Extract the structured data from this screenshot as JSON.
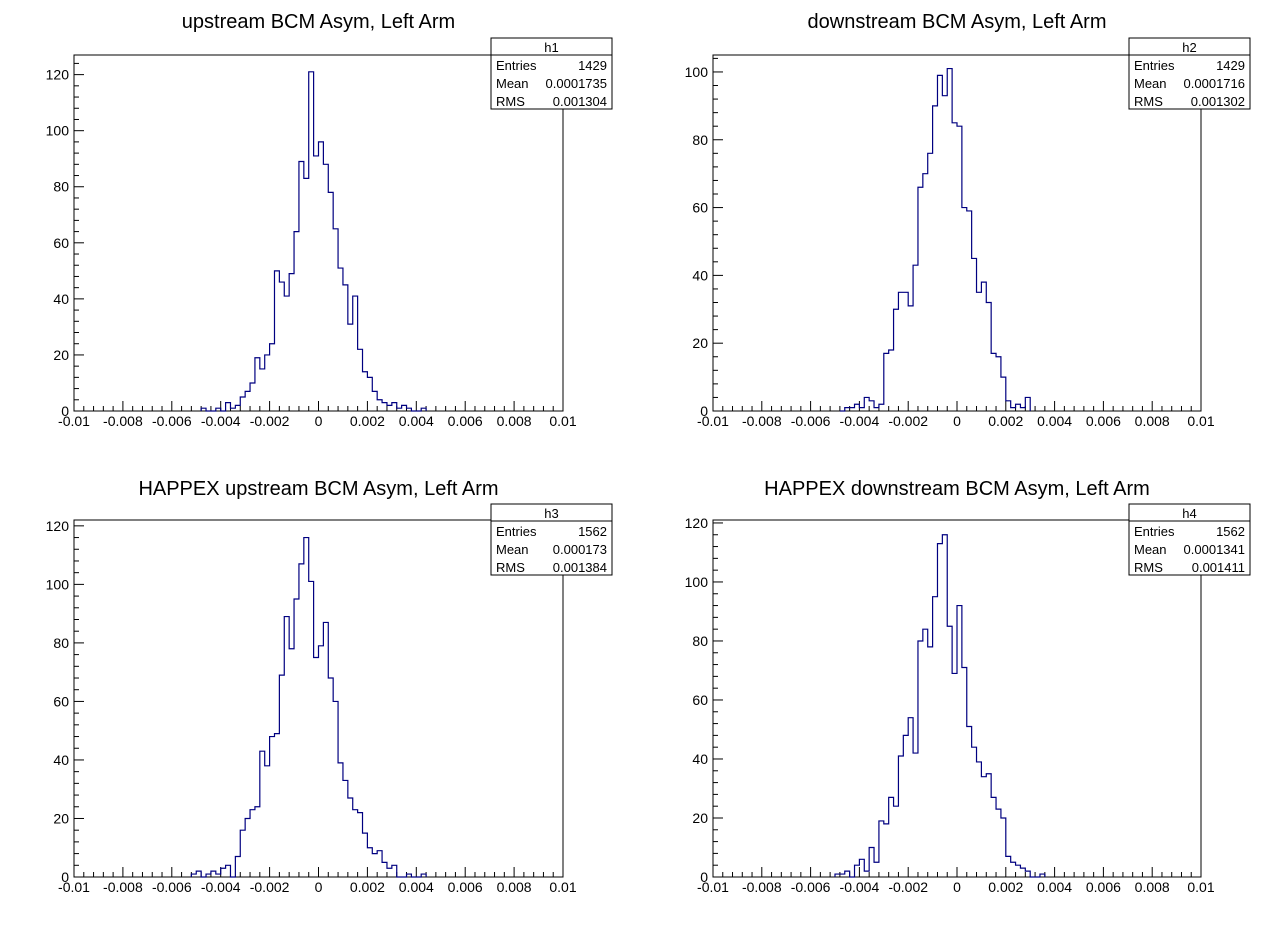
{
  "chart_data": [
    {
      "type": "bar",
      "title": "upstream BCM Asym, Left Arm",
      "xlim": [
        -0.01,
        0.01
      ],
      "ylim": [
        0,
        127
      ],
      "x_ticks": [
        "-0.01",
        "-0.008",
        "-0.006",
        "-0.004",
        "-0.002",
        "0",
        "0.002",
        "0.004",
        "0.006",
        "0.008",
        "0.01"
      ],
      "y_ticks": [
        "0",
        "20",
        "40",
        "60",
        "80",
        "100",
        "120"
      ],
      "stats": {
        "name": "h1",
        "rows": [
          [
            "Entries",
            "1429"
          ],
          [
            "Mean",
            "0.0001735"
          ],
          [
            "RMS",
            "0.001304"
          ]
        ]
      },
      "bin_width": 0.0002,
      "x_start": -0.0048,
      "values": [
        1,
        0,
        0,
        1,
        0,
        3,
        1,
        2,
        5,
        7,
        10,
        19,
        15,
        20,
        24,
        50,
        46,
        41,
        49,
        64,
        89,
        83,
        121,
        91,
        96,
        88,
        78,
        65,
        51,
        45,
        31,
        41,
        22,
        14,
        12,
        7,
        4,
        3,
        2,
        3,
        1,
        2,
        1,
        0,
        0,
        1
      ]
    },
    {
      "type": "bar",
      "title": "downstream BCM Asym, Left Arm",
      "xlim": [
        -0.01,
        0.01
      ],
      "ylim": [
        0,
        105
      ],
      "x_ticks": [
        "-0.01",
        "-0.008",
        "-0.006",
        "-0.004",
        "-0.002",
        "0",
        "0.002",
        "0.004",
        "0.006",
        "0.008",
        "0.01"
      ],
      "y_ticks": [
        "0",
        "20",
        "40",
        "60",
        "80",
        "100"
      ],
      "stats": {
        "name": "h2",
        "rows": [
          [
            "Entries",
            "1429"
          ],
          [
            "Mean",
            "0.0001716"
          ],
          [
            "RMS",
            "0.001302"
          ]
        ]
      },
      "bin_width": 0.0002,
      "x_start": -0.0048,
      "values": [
        0,
        1,
        1,
        2,
        1,
        4,
        3,
        1,
        2,
        17,
        18,
        30,
        35,
        35,
        31,
        43,
        66,
        70,
        76,
        90,
        99,
        93,
        101,
        85,
        84,
        60,
        59,
        45,
        35,
        38,
        32,
        17,
        16,
        10,
        3,
        1,
        2,
        1,
        4
      ]
    },
    {
      "type": "bar",
      "title": "HAPPEX upstream BCM Asym, Left Arm",
      "xlim": [
        -0.01,
        0.01
      ],
      "ylim": [
        0,
        122
      ],
      "x_ticks": [
        "-0.01",
        "-0.008",
        "-0.006",
        "-0.004",
        "-0.002",
        "0",
        "0.002",
        "0.004",
        "0.006",
        "0.008",
        "0.01"
      ],
      "y_ticks": [
        "0",
        "20",
        "40",
        "60",
        "80",
        "100",
        "120"
      ],
      "stats": {
        "name": "h3",
        "rows": [
          [
            "Entries",
            "1562"
          ],
          [
            "Mean",
            "0.000173"
          ],
          [
            "RMS",
            "0.001384"
          ]
        ]
      },
      "bin_width": 0.0002,
      "x_start": -0.0052,
      "values": [
        1,
        2,
        0,
        1,
        2,
        1,
        3,
        4,
        0,
        7,
        16,
        20,
        23,
        24,
        43,
        38,
        48,
        49,
        69,
        89,
        78,
        95,
        107,
        116,
        101,
        75,
        79,
        87,
        68,
        60,
        39,
        33,
        27,
        23,
        22,
        15,
        10,
        8,
        9,
        5,
        3,
        4,
        0,
        0,
        1,
        0,
        0,
        1
      ]
    },
    {
      "type": "bar",
      "title": "HAPPEX downstream BCM Asym, Left Arm",
      "xlim": [
        -0.01,
        0.01
      ],
      "ylim": [
        0,
        121
      ],
      "x_ticks": [
        "-0.01",
        "-0.008",
        "-0.006",
        "-0.004",
        "-0.002",
        "0",
        "0.002",
        "0.004",
        "0.006",
        "0.008",
        "0.01"
      ],
      "y_ticks": [
        "0",
        "20",
        "40",
        "60",
        "80",
        "100",
        "120"
      ],
      "stats": {
        "name": "h4",
        "rows": [
          [
            "Entries",
            "1562"
          ],
          [
            "Mean",
            "0.0001341"
          ],
          [
            "RMS",
            "0.001411"
          ]
        ]
      },
      "bin_width": 0.0002,
      "x_start": -0.005,
      "values": [
        1,
        1,
        2,
        0,
        4,
        6,
        2,
        10,
        5,
        19,
        18,
        27,
        24,
        41,
        48,
        54,
        42,
        80,
        84,
        78,
        95,
        113,
        116,
        85,
        69,
        92,
        71,
        51,
        44,
        39,
        34,
        35,
        27,
        23,
        20,
        7,
        5,
        4,
        3,
        2,
        0,
        0,
        1
      ]
    }
  ]
}
